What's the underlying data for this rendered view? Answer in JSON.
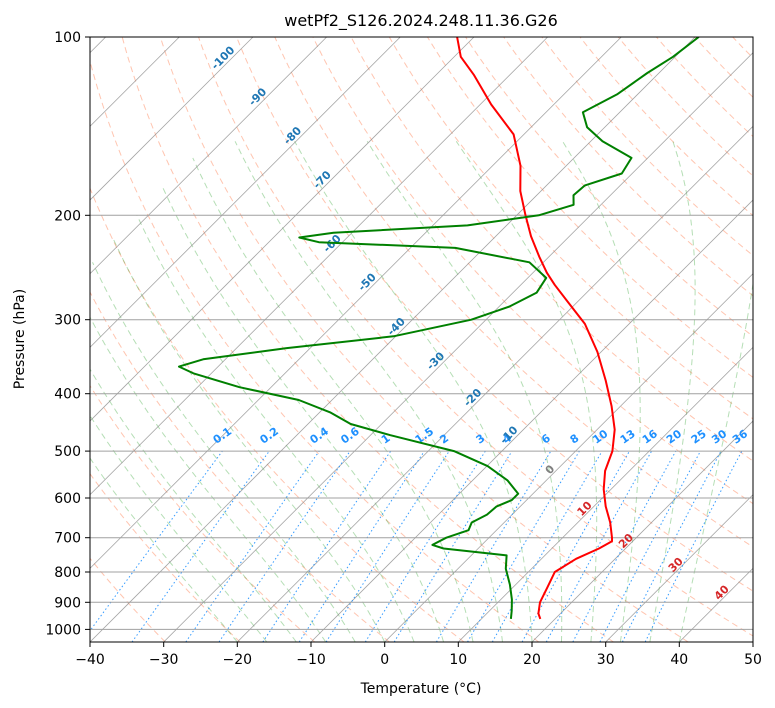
{
  "chart_data": {
    "type": "line",
    "title": "wetPf2_S126.2024.248.11.36.G26",
    "xlabel": "Temperature (°C)",
    "ylabel": "Pressure (hPa)",
    "xlim": [
      -40,
      50
    ],
    "ylim": [
      1050,
      100
    ],
    "y_scale": "log",
    "grid": true,
    "x_ticks": [
      -40,
      -30,
      -20,
      -10,
      0,
      10,
      20,
      30,
      40,
      50
    ],
    "y_ticks": [
      100,
      200,
      300,
      400,
      500,
      600,
      700,
      800,
      900,
      1000
    ],
    "skew": true,
    "colors": {
      "temperature": "#ff0000",
      "dewpoint": "#008000",
      "dry_adiabat": "#ff7f50",
      "moist_adiabat": "#2ca02c",
      "mixing_ratio": "#1e90ff",
      "isotherm": "#808080",
      "adiabat_label": "#1f77b4",
      "theta_label": "#d62728"
    },
    "series": [
      {
        "key": "temperature",
        "points": [
          [
            18,
            960
          ],
          [
            17,
            940
          ],
          [
            15.7,
            900
          ],
          [
            14.7,
            850
          ],
          [
            13.6,
            800
          ],
          [
            14.7,
            760
          ],
          [
            16.4,
            730
          ],
          [
            17.2,
            710
          ],
          [
            16.7,
            700
          ],
          [
            14.4,
            660
          ],
          [
            11.6,
            620
          ],
          [
            9.0,
            580
          ],
          [
            6.7,
            540
          ],
          [
            5.0,
            500
          ],
          [
            2.4,
            460
          ],
          [
            -1.2,
            420
          ],
          [
            -5.5,
            380
          ],
          [
            -10.5,
            340
          ],
          [
            -16.0,
            305
          ],
          [
            -21.3,
            280
          ],
          [
            -25.4,
            262
          ],
          [
            -28.1,
            250
          ],
          [
            -31.3,
            235
          ],
          [
            -35.2,
            217
          ],
          [
            -38.8,
            200
          ],
          [
            -42.8,
            182
          ],
          [
            -46.2,
            165
          ],
          [
            -51.4,
            146
          ],
          [
            -58.5,
            130
          ],
          [
            -64.8,
            116
          ],
          [
            -69.1,
            108
          ],
          [
            -72.3,
            100
          ]
        ]
      },
      {
        "key": "dewpoint",
        "points": [
          [
            14,
            960
          ],
          [
            13,
            930
          ],
          [
            11.5,
            890
          ],
          [
            9.2,
            840
          ],
          [
            6.5,
            790
          ],
          [
            4.8,
            750
          ],
          [
            -4.7,
            730
          ],
          [
            -6.7,
            720
          ],
          [
            -5.8,
            700
          ],
          [
            -3.8,
            680
          ],
          [
            -4.4,
            660
          ],
          [
            -3.4,
            640
          ],
          [
            -3.2,
            620
          ],
          [
            -2.0,
            605
          ],
          [
            -2.0,
            590
          ],
          [
            -5.3,
            560
          ],
          [
            -9.9,
            530
          ],
          [
            -16.5,
            500
          ],
          [
            -27.3,
            470
          ],
          [
            -34.2,
            450
          ],
          [
            -38.6,
            430
          ],
          [
            -44.5,
            410
          ],
          [
            -54.3,
            390
          ],
          [
            -62.3,
            370
          ],
          [
            -65.3,
            360
          ],
          [
            -63.0,
            350
          ],
          [
            -53.2,
            335
          ],
          [
            -40.3,
            320
          ],
          [
            -32.0,
            300
          ],
          [
            -28.6,
            285
          ],
          [
            -26.8,
            270
          ],
          [
            -27.5,
            255
          ],
          [
            -31.9,
            240
          ],
          [
            -43.9,
            227
          ],
          [
            -63.2,
            222
          ],
          [
            -66.5,
            218
          ],
          [
            -62.5,
            214
          ],
          [
            -45.3,
            208
          ],
          [
            -37.0,
            200
          ],
          [
            -33.7,
            192
          ],
          [
            -35.0,
            185
          ],
          [
            -34.8,
            178
          ],
          [
            -31.4,
            170
          ],
          [
            -32.2,
            160
          ],
          [
            -38.4,
            150
          ],
          [
            -42.4,
            142
          ],
          [
            -45.0,
            134
          ],
          [
            -42.8,
            125
          ],
          [
            -41.6,
            115
          ],
          [
            -40.3,
            108
          ],
          [
            -39.5,
            100
          ]
        ]
      }
    ],
    "mixing_ratio_labels": [
      "0.1",
      "0.2",
      "0.4",
      "0.6",
      "1",
      "1.5",
      "2",
      "3",
      "4",
      "6",
      "8",
      "10",
      "13",
      "16",
      "20",
      "25",
      "30",
      "36"
    ],
    "dry_adiabat_labels": [
      "-100",
      "-90",
      "-80",
      "-70",
      "-60",
      "-50",
      "-40",
      "-30",
      "-20",
      "-10"
    ],
    "theta_labels": [
      "0",
      "10",
      "20",
      "30",
      "40"
    ]
  }
}
